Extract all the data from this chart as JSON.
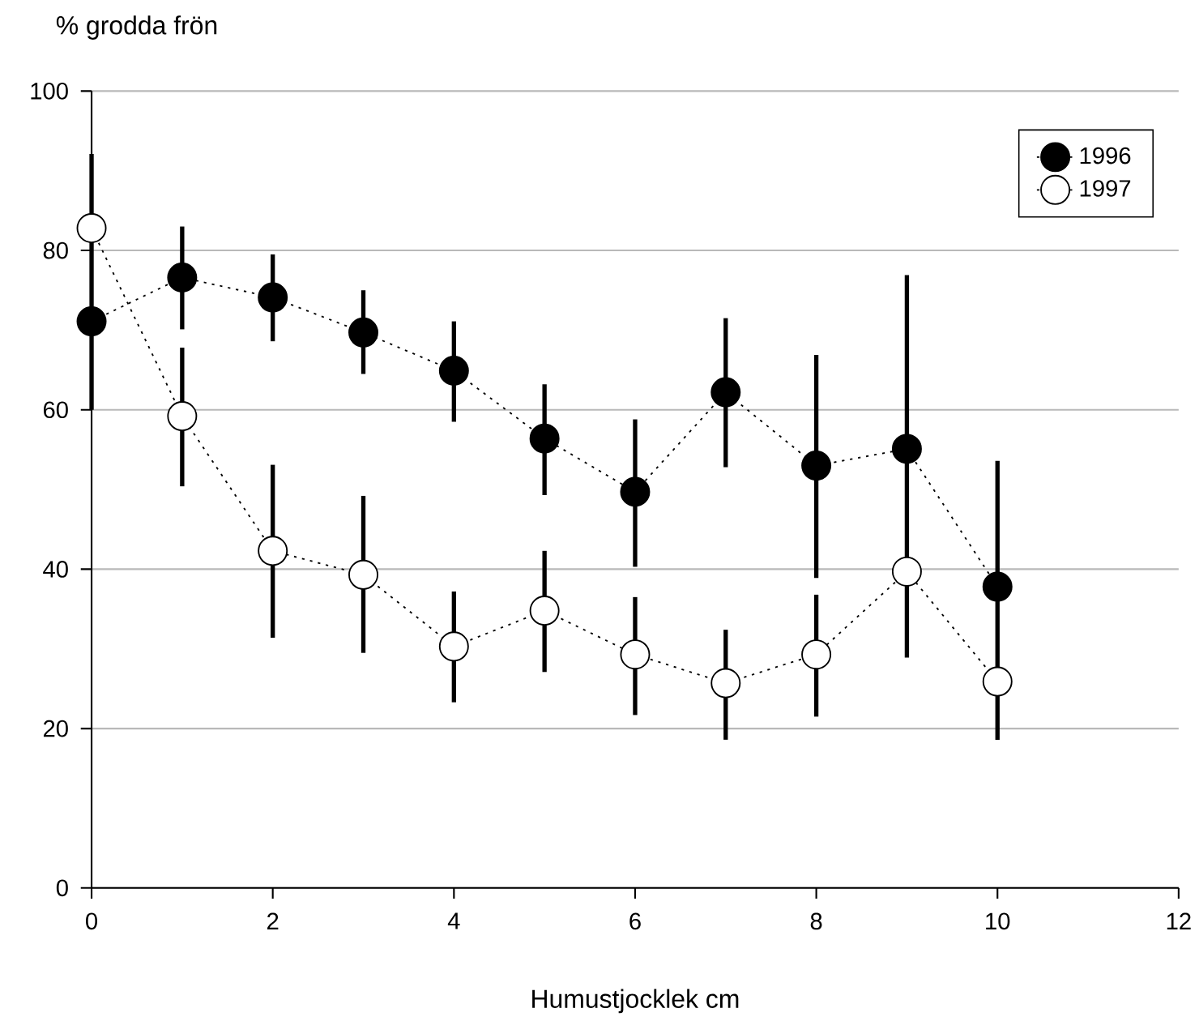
{
  "chart_data": {
    "type": "line",
    "xlabel": "Humustjocklek cm",
    "ylabel": "% grodda frön",
    "x": [
      0,
      1,
      2,
      3,
      4,
      5,
      6,
      7,
      8,
      9,
      10
    ],
    "series": [
      {
        "name": "1996",
        "color": "#000000",
        "values": [
          71.1,
          76.6,
          74.1,
          69.7,
          64.9,
          56.4,
          49.7,
          62.2,
          53.0,
          55.1,
          37.8
        ],
        "errors": [
          [
            60.0,
            92.1
          ],
          [
            70.1,
            83.0
          ],
          [
            68.6,
            79.5
          ],
          [
            64.5,
            75.0
          ],
          [
            58.5,
            71.1
          ],
          [
            49.3,
            63.2
          ],
          [
            40.3,
            58.8
          ],
          [
            52.8,
            71.5
          ],
          [
            38.9,
            66.9
          ],
          [
            28.9,
            76.9
          ],
          [
            18.6,
            53.6
          ]
        ]
      },
      {
        "name": "1997",
        "color": "#ffffff",
        "values": [
          82.8,
          59.2,
          42.3,
          39.3,
          30.3,
          34.8,
          29.3,
          25.7,
          29.3,
          39.7,
          25.9
        ],
        "errors": [
          null,
          [
            50.4,
            67.8
          ],
          [
            31.4,
            53.1
          ],
          [
            29.5,
            49.2
          ],
          [
            23.3,
            37.2
          ],
          [
            27.1,
            42.3
          ],
          [
            21.7,
            36.5
          ],
          [
            18.6,
            32.4
          ],
          [
            21.5,
            36.8
          ],
          null,
          null
        ]
      }
    ],
    "xlim": [
      0,
      12
    ],
    "xticks": [
      0,
      2,
      4,
      6,
      8,
      10,
      12
    ],
    "ylim": [
      0,
      100
    ],
    "yticks": [
      0,
      20,
      40,
      60,
      80,
      100
    ],
    "grid": "y",
    "legend": "top right",
    "marker": "circle",
    "line_style": "dotted"
  }
}
